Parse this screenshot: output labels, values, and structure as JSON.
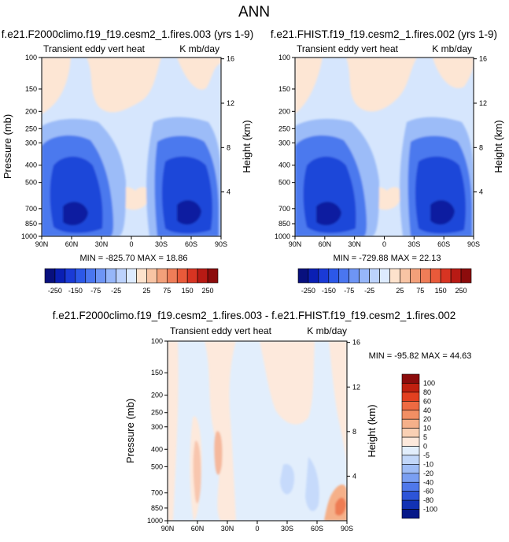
{
  "page_title": "ANN",
  "chart_data": [
    {
      "type": "heatmap",
      "title": "f.e21.F2000climo.f19_f19.cesm2_1.fires.003 (yrs 1-9)",
      "subtitle_left": "Transient eddy vert heat",
      "subtitle_right": "K mb/day",
      "ylabel": "Pressure (mb)",
      "ylabel_right": "Height (km)",
      "x_ticks": [
        "90N",
        "60N",
        "30N",
        "0",
        "30S",
        "60S",
        "90S"
      ],
      "y_ticks": [
        "100",
        "150",
        "200",
        "250",
        "300",
        "400",
        "500",
        "700",
        "850",
        "1000"
      ],
      "y_right_ticks": [
        "16",
        "12",
        "8",
        "4"
      ],
      "stats": "MIN = -825.70   MAX =  18.86",
      "min": -825.7,
      "max": 18.86
    },
    {
      "type": "heatmap",
      "title": "f.e21.FHIST.f19_f19.cesm2_1.fires.002 (yrs 1-9)",
      "subtitle_left": "Transient eddy vert heat",
      "subtitle_right": "K mb/day",
      "ylabel": "Pressure (mb)",
      "ylabel_right": "Height (km)",
      "x_ticks": [
        "90N",
        "60N",
        "30N",
        "0",
        "30S",
        "60S",
        "90S"
      ],
      "y_ticks": [
        "100",
        "150",
        "200",
        "250",
        "300",
        "400",
        "500",
        "700",
        "850",
        "1000"
      ],
      "y_right_ticks": [
        "16",
        "12",
        "8",
        "4"
      ],
      "stats": "MIN = -729.88   MAX =  22.13",
      "min": -729.88,
      "max": 22.13
    },
    {
      "type": "heatmap",
      "title": "f.e21.F2000climo.f19_f19.cesm2_1.fires.003 - f.e21.FHIST.f19_f19.cesm2_1.fires.002",
      "subtitle_left": "Transient eddy vert heat",
      "subtitle_right": "K mb/day",
      "ylabel": "Pressure (mb)",
      "ylabel_right": "Height (km)",
      "x_ticks": [
        "90N",
        "60N",
        "30N",
        "0",
        "30S",
        "60S",
        "90S"
      ],
      "y_ticks": [
        "100",
        "150",
        "200",
        "250",
        "300",
        "400",
        "500",
        "700",
        "850",
        "1000"
      ],
      "y_right_ticks": [
        "16",
        "12",
        "8",
        "4"
      ],
      "stats": "MIN = -95.82   MAX =  44.63",
      "min": -95.82,
      "max": 44.63
    }
  ],
  "colorbar_top": {
    "labels": [
      "-250",
      "-150",
      "-75",
      "-25",
      "25",
      "75",
      "150",
      "250"
    ],
    "colors": [
      "#08107e",
      "#0a1fb4",
      "#1a3ad6",
      "#2c58e8",
      "#4a76f0",
      "#6e95f5",
      "#96b6f9",
      "#bcd2fc",
      "#ddebfe",
      "#fde2cc",
      "#f8c4a4",
      "#f3a07a",
      "#ef7d58",
      "#e95a3a",
      "#d83422",
      "#b81a14",
      "#8c0c0c"
    ]
  },
  "colorbar_bottom": {
    "labels": [
      "100",
      "80",
      "60",
      "40",
      "20",
      "10",
      "5",
      "0",
      "-5",
      "-10",
      "-20",
      "-40",
      "-60",
      "-80",
      "-100"
    ],
    "colors": [
      "#8c0c0c",
      "#c0200f",
      "#e24020",
      "#ee6a42",
      "#f28f64",
      "#f5b08a",
      "#f9d0b4",
      "#fde9dc",
      "#e2eefc",
      "#c2d7f9",
      "#9fbdf6",
      "#7a9ff2",
      "#4f78ea",
      "#2d54d8",
      "#1232b4",
      "#061888"
    ]
  },
  "colors": {
    "max_blue": "#0a1fa0",
    "deep_blue": "#1f46d9",
    "mid_blue": "#4b79ee",
    "light_blue": "#9cbcf8",
    "pale_blue": "#d6e6fd",
    "pale_orange": "#fde6d4",
    "orange": "#f2a585"
  }
}
